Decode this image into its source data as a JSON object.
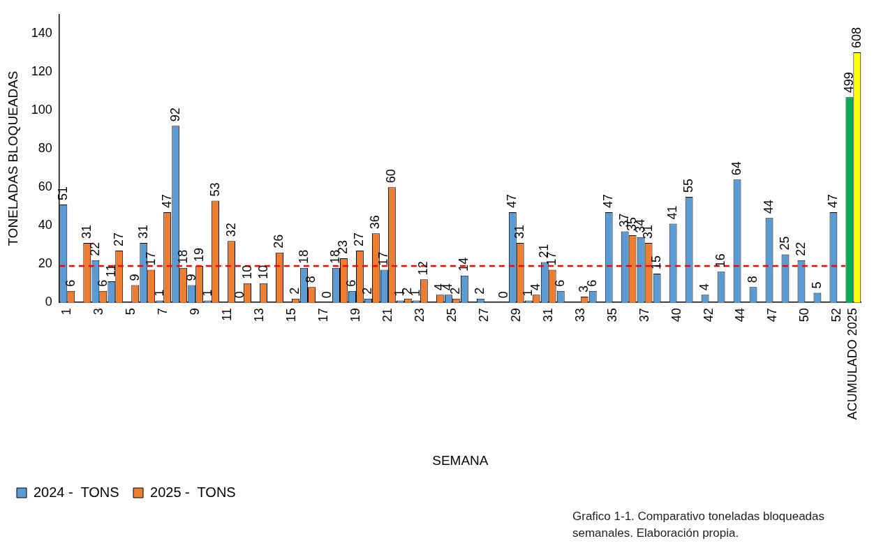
{
  "chart_data": {
    "type": "bar",
    "xlabel": "SEMANA",
    "ylabel": "TONELADAS BLOQUEADAS",
    "categories": [
      "1",
      null,
      "3",
      null,
      "5",
      null,
      "7",
      null,
      "9",
      null,
      "11",
      null,
      "13",
      null,
      "15",
      null,
      "17",
      null,
      "19",
      null,
      "21",
      null,
      "23",
      null,
      "25",
      null,
      "27",
      null,
      "29",
      null,
      "31",
      null,
      "33",
      null,
      "35",
      null,
      "37",
      null,
      "40",
      null,
      "42",
      null,
      "44",
      null,
      "47",
      null,
      "50",
      null,
      "52",
      "ACUMULADO 2025"
    ],
    "series": [
      {
        "name": "2024 -  TONS",
        "color": "#5b9bd5",
        "values": [
          51,
          null,
          22,
          11,
          null,
          31,
          1,
          92,
          9,
          1,
          null,
          0,
          null,
          null,
          null,
          18,
          null,
          18,
          6,
          2,
          17,
          1,
          1,
          null,
          4,
          14,
          2,
          null,
          47,
          1,
          21,
          6,
          null,
          6,
          47,
          37,
          34,
          15,
          41,
          55,
          4,
          16,
          64,
          8,
          44,
          25,
          22,
          5,
          47,
          null
        ]
      },
      {
        "name": "2025 -  TONS",
        "color": "#ed7d31",
        "values": [
          6,
          31,
          6,
          27,
          9,
          17,
          47,
          18,
          19,
          53,
          32,
          10,
          10,
          26,
          2,
          8,
          0,
          23,
          27,
          36,
          60,
          2,
          12,
          4,
          2,
          null,
          null,
          0,
          31,
          4,
          17,
          null,
          3,
          null,
          null,
          35,
          31,
          null,
          null,
          null,
          null,
          null,
          null,
          null,
          null,
          null,
          null,
          null,
          null,
          null
        ]
      },
      {
        "color": "#00b050",
        "axis": "y2",
        "values": [
          null,
          null,
          null,
          null,
          null,
          null,
          null,
          null,
          null,
          null,
          null,
          null,
          null,
          null,
          null,
          null,
          null,
          null,
          null,
          null,
          null,
          null,
          null,
          null,
          null,
          null,
          null,
          null,
          null,
          null,
          null,
          null,
          null,
          null,
          null,
          null,
          null,
          null,
          null,
          null,
          null,
          null,
          null,
          null,
          null,
          null,
          null,
          null,
          null,
          499
        ]
      },
      {
        "color": "#ffff00",
        "axis": "y2",
        "values": [
          null,
          null,
          null,
          null,
          null,
          null,
          null,
          null,
          null,
          null,
          null,
          null,
          null,
          null,
          null,
          null,
          null,
          null,
          null,
          null,
          null,
          null,
          null,
          null,
          null,
          null,
          null,
          null,
          null,
          null,
          null,
          null,
          null,
          null,
          null,
          null,
          null,
          null,
          null,
          null,
          null,
          null,
          null,
          null,
          null,
          null,
          null,
          null,
          null,
          608
        ]
      }
    ],
    "ylim": [
      0,
      150
    ],
    "yticks": [
      0,
      20,
      40,
      60,
      80,
      100,
      120,
      140
    ],
    "y2lim": [
      0,
      700
    ],
    "ref_lines": [
      {
        "axis": "y",
        "value": 19,
        "color": "#ff0000",
        "line_style": "dashed"
      }
    ],
    "data_labels": true,
    "grid": false,
    "legend": "bottom left",
    "annotations": [
      "Grafico 1-1.  Comparativo toneladas bloqueadas semanales. Elaboración propia."
    ]
  }
}
